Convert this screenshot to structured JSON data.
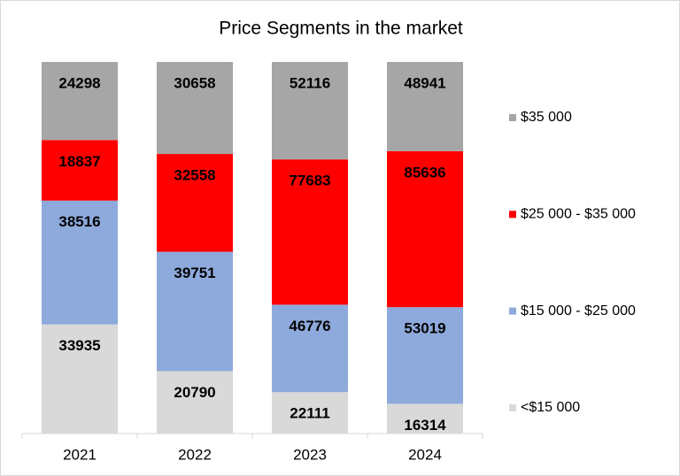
{
  "chart_data": {
    "type": "bar",
    "stacking": "percent",
    "title": "Price Segments in the market",
    "categories": [
      "2021",
      "2022",
      "2023",
      "2024"
    ],
    "series": [
      {
        "name": "<$15 000",
        "color": "#d9d9d9",
        "values": [
          33935,
          20790,
          22111,
          16314
        ]
      },
      {
        "name": "$15 000 - $25 000",
        "color": "#8eaadc",
        "values": [
          38516,
          39751,
          46776,
          53019
        ]
      },
      {
        "name": "$25 000 - $35 000",
        "color": "#ff0000",
        "values": [
          18837,
          32558,
          77683,
          85636
        ]
      },
      {
        "name": "$35 000",
        "color": "#a6a6a6",
        "values": [
          24298,
          30658,
          52116,
          48941
        ]
      }
    ],
    "legend": "right"
  }
}
